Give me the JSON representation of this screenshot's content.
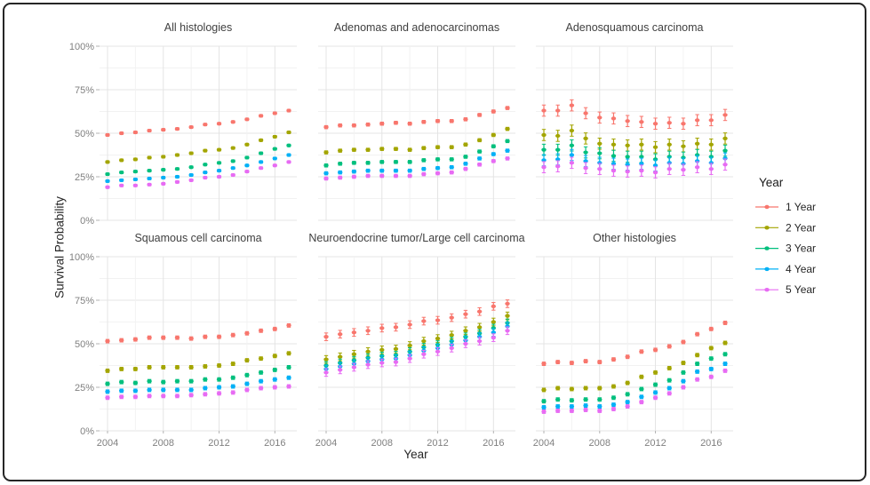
{
  "figure": {
    "ylabel": "Survival Probability",
    "xlabel": "Year",
    "legend": {
      "title": "Year",
      "items": [
        {
          "label": "1 Year",
          "color": "#F8766D"
        },
        {
          "label": "2 Year",
          "color": "#A3A500"
        },
        {
          "label": "3 Year",
          "color": "#00BF7D"
        },
        {
          "label": "4 Year",
          "color": "#00B0F6"
        },
        {
          "label": "5 Year",
          "color": "#E76BF3"
        }
      ]
    }
  },
  "chart_data": {
    "type": "scatter",
    "subtype": "faceted point estimates with vertical error bars (2 rows x 3 columns)",
    "xlabel": "Year",
    "ylabel": "Survival Probability",
    "x": [
      2004,
      2005,
      2006,
      2007,
      2008,
      2009,
      2010,
      2011,
      2012,
      2013,
      2014,
      2015,
      2016,
      2017
    ],
    "x_ticks": [
      2004,
      2008,
      2012,
      2016
    ],
    "y_ticks_pct": [
      0,
      25,
      50,
      75,
      100
    ],
    "ylim": [
      0,
      100
    ],
    "grid": "white panels, light gray major gridlines with fainter minor gridlines",
    "legend_position": "right",
    "legend_title": "Year",
    "series_names": [
      "1 Year",
      "2 Year",
      "3 Year",
      "4 Year",
      "5 Year"
    ],
    "series_colors": [
      "#F8766D",
      "#A3A500",
      "#00BF7D",
      "#00B0F6",
      "#E76BF3"
    ],
    "facets": [
      {
        "title": "All histologies",
        "error_bar_halfwidth_pct": 0.7,
        "series": [
          {
            "name": "1 Year",
            "values": [
              49,
              50,
              50.5,
              51.5,
              52,
              52.5,
              53.5,
              55,
              55.5,
              56.5,
              58,
              60,
              61.5,
              63
            ]
          },
          {
            "name": "2 Year",
            "values": [
              33.5,
              34.5,
              35,
              36,
              36.5,
              37.5,
              38.5,
              40,
              40.5,
              41.5,
              43.5,
              46,
              48,
              50.5
            ]
          },
          {
            "name": "3 Year",
            "values": [
              26.5,
              27.5,
              28,
              28.5,
              29,
              29.5,
              30.5,
              32,
              33,
              34,
              36,
              38.5,
              41,
              43
            ]
          },
          {
            "name": "4 Year",
            "values": [
              22.5,
              23,
              23.5,
              24,
              24.5,
              25,
              26,
              27.5,
              28.5,
              30,
              31.5,
              33.5,
              35.5,
              37.5
            ]
          },
          {
            "name": "5 Year",
            "values": [
              19,
              20,
              20,
              20.5,
              21,
              22,
              23,
              24.5,
              25,
              26,
              28,
              30,
              31.5,
              33.5
            ]
          }
        ]
      },
      {
        "title": "Adenomas and adenocarcinomas",
        "error_bar_halfwidth_pct": 0.9,
        "series": [
          {
            "name": "1 Year",
            "values": [
              53.5,
              54.5,
              54.5,
              55,
              55.5,
              56,
              55.5,
              56.5,
              57,
              57,
              58,
              60.5,
              62.5,
              64.5
            ]
          },
          {
            "name": "2 Year",
            "values": [
              39,
              40,
              40.5,
              40.5,
              41,
              41,
              40.5,
              41.5,
              42,
              42,
              43.5,
              46,
              49,
              52.5
            ]
          },
          {
            "name": "3 Year",
            "values": [
              31.5,
              32.5,
              33,
              33,
              33.5,
              33.5,
              33.5,
              34.5,
              35,
              35,
              36.5,
              39.5,
              42.5,
              45.5
            ]
          },
          {
            "name": "4 Year",
            "values": [
              27,
              27.5,
              28,
              28.5,
              28.5,
              28.5,
              28.5,
              29.5,
              30,
              30.5,
              32.5,
              35.5,
              38,
              40
            ]
          },
          {
            "name": "5 Year",
            "values": [
              24,
              24.5,
              25,
              25.5,
              25.5,
              25.5,
              25.5,
              26.5,
              27,
              27.5,
              29.5,
              32,
              34,
              35.5
            ]
          }
        ]
      },
      {
        "title": "Adenosquamous carcinoma",
        "error_bar_halfwidth_pct": 3.2,
        "series": [
          {
            "name": "1 Year",
            "values": [
              63,
              63,
              66,
              61.5,
              59,
              58.5,
              57,
              56.5,
              55.5,
              56,
              55.5,
              57.5,
              57.5,
              60.5
            ]
          },
          {
            "name": "2 Year",
            "values": [
              49,
              48.5,
              51.5,
              47,
              44,
              43.5,
              43,
              43.5,
              42,
              43.5,
              42.5,
              44,
              43.5,
              47
            ]
          },
          {
            "name": "3 Year",
            "values": [
              40.5,
              40.5,
              43,
              39,
              38.5,
              37,
              36.5,
              36.5,
              35,
              36.5,
              36,
              37.5,
              36.5,
              40
            ]
          },
          {
            "name": "4 Year",
            "values": [
              34.5,
              35,
              37.5,
              34,
              33,
              32.5,
              32,
              32.5,
              31.5,
              33,
              32.5,
              34,
              33,
              35.5
            ]
          },
          {
            "name": "5 Year",
            "values": [
              30.5,
              31,
              33,
              30,
              29.5,
              28.5,
              28,
              28.5,
              27.5,
              29.5,
              29,
              30.5,
              29.5,
              32
            ]
          }
        ]
      },
      {
        "title": "Squamous cell carcinoma",
        "error_bar_halfwidth_pct": 1.0,
        "series": [
          {
            "name": "1 Year",
            "values": [
              51.5,
              52,
              52.5,
              53.5,
              53.5,
              53.5,
              53,
              54,
              54,
              55,
              56,
              57.5,
              58.5,
              60.5
            ]
          },
          {
            "name": "2 Year",
            "values": [
              34.5,
              35.5,
              35.5,
              36.5,
              36.5,
              36.5,
              36.5,
              37,
              37.5,
              38.5,
              40.5,
              41.5,
              43,
              44.5
            ]
          },
          {
            "name": "3 Year",
            "values": [
              27,
              28,
              27.5,
              28.5,
              28,
              28.5,
              28.5,
              29.5,
              29.5,
              30.5,
              32,
              33.5,
              35,
              36.5
            ]
          },
          {
            "name": "4 Year",
            "values": [
              22.5,
              23,
              23,
              23.5,
              23.5,
              23.5,
              23.5,
              24.5,
              25,
              25.5,
              27,
              28.5,
              29.5,
              30.5
            ]
          },
          {
            "name": "5 Year",
            "values": [
              19,
              19.5,
              19.5,
              20,
              20,
              20,
              20.5,
              21,
              21.5,
              22,
              23.5,
              24.5,
              25,
              25.5
            ]
          }
        ]
      },
      {
        "title": "Neuroendocrine tumor/Large cell carcinoma",
        "error_bar_halfwidth_pct": 2.2,
        "series": [
          {
            "name": "1 Year",
            "values": [
              54,
              55.5,
              56.5,
              57.5,
              59,
              59.5,
              61,
              63,
              63.5,
              65,
              67,
              68.5,
              71.5,
              73
            ]
          },
          {
            "name": "2 Year",
            "values": [
              41,
              42.5,
              44,
              45.5,
              46.5,
              47,
              49,
              51.5,
              53,
              55,
              57.5,
              59.5,
              62.5,
              66
            ]
          },
          {
            "name": "3 Year",
            "values": [
              37.5,
              39,
              40.5,
              42,
              43,
              43.5,
              45.5,
              48,
              49.5,
              51.5,
              54,
              56,
              59,
              62
            ]
          },
          {
            "name": "4 Year",
            "values": [
              35.5,
              37,
              38.5,
              40,
              41,
              41.5,
              43.5,
              46,
              47.5,
              49.5,
              52,
              54,
              56.5,
              60
            ]
          },
          {
            "name": "5 Year",
            "values": [
              33.5,
              35,
              36.5,
              38,
              39,
              39.5,
              41.5,
              44,
              45.5,
              47.5,
              50,
              51.5,
              53.5,
              57.5
            ]
          }
        ]
      },
      {
        "title": "Other histologies",
        "error_bar_halfwidth_pct": 1.0,
        "series": [
          {
            "name": "1 Year",
            "values": [
              38.5,
              39.5,
              39,
              40,
              39.5,
              41,
              42.5,
              45.5,
              46.5,
              48.5,
              51,
              55.5,
              58.5,
              62
            ]
          },
          {
            "name": "2 Year",
            "values": [
              23.5,
              24.5,
              24,
              24.5,
              24.5,
              25.5,
              27.5,
              31,
              33.5,
              36,
              39,
              43.5,
              47.5,
              50.5
            ]
          },
          {
            "name": "3 Year",
            "values": [
              17,
              18,
              17.5,
              18,
              18,
              19,
              21,
              24,
              26.5,
              29,
              33.5,
              38.5,
              41.5,
              44
            ]
          },
          {
            "name": "4 Year",
            "values": [
              13.5,
              14,
              14,
              14.5,
              14,
              15,
              16.5,
              19.5,
              22,
              24.5,
              28.5,
              34,
              35.5,
              38.5
            ]
          },
          {
            "name": "5 Year",
            "values": [
              11,
              11.5,
              11.5,
              12,
              11.5,
              12.5,
              14,
              16.5,
              19,
              21.5,
              25,
              29.5,
              31,
              34.5
            ]
          }
        ]
      }
    ]
  }
}
